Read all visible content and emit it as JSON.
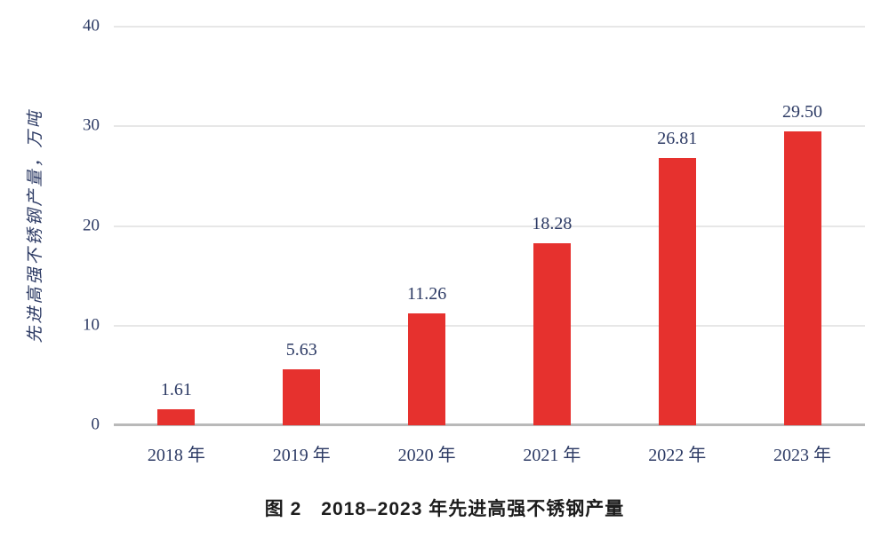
{
  "figure": {
    "caption": "图 2　2018–2023 年先进高强不锈钢产量"
  },
  "chart_data": {
    "type": "bar",
    "title": "图 2 2018–2023 年先进高强不锈钢产量",
    "categories": [
      "2018 年",
      "2019 年",
      "2020 年",
      "2021 年",
      "2022 年",
      "2023 年"
    ],
    "values": [
      1.61,
      5.63,
      11.26,
      18.28,
      26.81,
      29.5
    ],
    "value_labels": [
      "1.61",
      "5.63",
      "11.26",
      "18.28",
      "26.81",
      "29.50"
    ],
    "series_name": "先进高强不锈钢产量",
    "xlabel": "",
    "ylabel": "先进高强不锈钢产量，万吨",
    "ylim": [
      0,
      40
    ],
    "yticks": [
      0,
      10,
      20,
      30,
      40
    ],
    "grid": true,
    "legend": false,
    "colors": {
      "bar": "#e6312e",
      "text": "#2c3a64",
      "gridline": "#e7e7e7",
      "baseline": "#b9b9b9",
      "caption": "#1c1c1c"
    }
  }
}
